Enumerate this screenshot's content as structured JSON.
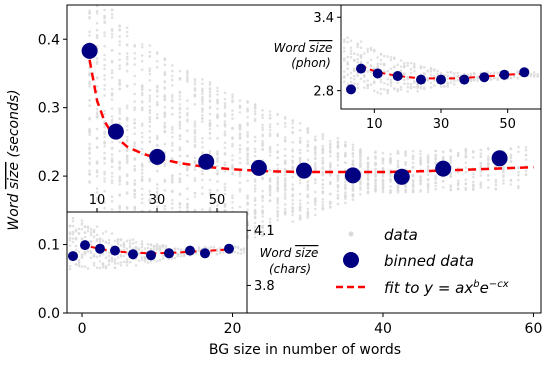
{
  "chart_data": [
    {
      "panel": "main",
      "type": "scatter",
      "xlabel": "BG size in number of words",
      "ylabel_parts": [
        "Word ",
        "size",
        " (seconds)"
      ],
      "xlim": [
        -2,
        61
      ],
      "ylim": [
        0,
        0.45
      ],
      "xticks": [
        0,
        20,
        40,
        60
      ],
      "xtick_labels": [
        "0",
        "20",
        "40",
        "60"
      ],
      "yticks": [
        0.0,
        0.1,
        0.2,
        0.3,
        0.4
      ],
      "ytick_labels": [
        "0.0",
        "0.1",
        "0.2",
        "0.3",
        "0.4"
      ],
      "series": [
        {
          "name": "binned data",
          "color": "#000080",
          "points": [
            [
              1,
              0.383
            ],
            [
              4.5,
              0.265
            ],
            [
              10,
              0.228
            ],
            [
              16.5,
              0.221
            ],
            [
              23.5,
              0.212
            ],
            [
              29.5,
              0.208
            ],
            [
              36,
              0.201
            ],
            [
              42.5,
              0.199
            ],
            [
              48,
              0.211
            ],
            [
              55.5,
              0.226
            ]
          ]
        },
        {
          "name": "fit to y=ax^b e^{-cx}",
          "color": "#ff0000",
          "curve": [
            [
              1,
              0.37
            ],
            [
              2,
              0.31
            ],
            [
              3,
              0.28
            ],
            [
              4,
              0.262
            ],
            [
              6,
              0.243
            ],
            [
              8,
              0.233
            ],
            [
              10,
              0.226
            ],
            [
              13,
              0.219
            ],
            [
              16,
              0.214
            ],
            [
              20,
              0.21
            ],
            [
              25,
              0.207
            ],
            [
              30,
              0.206
            ],
            [
              35,
              0.206
            ],
            [
              40,
              0.206
            ],
            [
              45,
              0.207
            ],
            [
              50,
              0.209
            ],
            [
              55,
              0.211
            ],
            [
              60,
              0.213
            ]
          ]
        }
      ],
      "legend": {
        "location": "lower-right",
        "entries": [
          {
            "label": "data",
            "marker": "gray-dot"
          },
          {
            "label": "binned data",
            "marker": "navy-circle"
          },
          {
            "label_parts": [
              "fit to ",
              "y",
              " = ",
              "ax",
              "b",
              "e",
              "−cx"
            ],
            "marker": "red-dashed"
          }
        ]
      },
      "background_scatter_color": "#d9d9d9"
    },
    {
      "panel": "inset_phon",
      "type": "scatter",
      "ylabel_parts": [
        "Word ",
        "size",
        "(phon)"
      ],
      "xlim": [
        0,
        60
      ],
      "ylim": [
        2.65,
        3.5
      ],
      "xticks": [
        10,
        30,
        50
      ],
      "xtick_labels": [
        "10",
        "30",
        "50"
      ],
      "yticks": [
        2.8,
        3.4
      ],
      "ytick_labels": [
        "2.8",
        "3.4"
      ],
      "series": [
        {
          "name": "binned data",
          "color": "#000080",
          "points": [
            [
              3,
              2.81
            ],
            [
              6,
              2.98
            ],
            [
              11,
              2.94
            ],
            [
              17,
              2.92
            ],
            [
              24,
              2.89
            ],
            [
              30,
              2.89
            ],
            [
              37,
              2.89
            ],
            [
              43,
              2.91
            ],
            [
              49,
              2.93
            ],
            [
              55,
              2.95
            ]
          ]
        },
        {
          "name": "fit",
          "color": "#ff0000",
          "curve": [
            [
              6,
              3.01
            ],
            [
              8,
              2.98
            ],
            [
              11,
              2.95
            ],
            [
              15,
              2.93
            ],
            [
              20,
              2.91
            ],
            [
              25,
              2.9
            ],
            [
              30,
              2.9
            ],
            [
              35,
              2.9
            ],
            [
              40,
              2.91
            ],
            [
              45,
              2.92
            ],
            [
              50,
              2.93
            ],
            [
              56,
              2.94
            ]
          ]
        }
      ]
    },
    {
      "panel": "inset_chars",
      "type": "scatter",
      "ylabel_parts": [
        "Word ",
        "size",
        "(chars)"
      ],
      "xlim": [
        0,
        60
      ],
      "ylim": [
        3.65,
        4.2
      ],
      "xticks": [
        10,
        30,
        50
      ],
      "xtick_labels": [
        "10",
        "30",
        "50"
      ],
      "yticks": [
        3.8,
        4.1
      ],
      "ytick_labels": [
        "3.8",
        "4.1"
      ],
      "series": [
        {
          "name": "binned data",
          "color": "#000080",
          "points": [
            [
              2,
              3.96
            ],
            [
              6,
              4.02
            ],
            [
              11,
              4.0
            ],
            [
              16,
              3.99
            ],
            [
              22,
              3.97
            ],
            [
              28,
              3.965
            ],
            [
              34,
              3.975
            ],
            [
              41,
              3.99
            ],
            [
              46,
              3.975
            ],
            [
              54,
              4.0
            ]
          ]
        },
        {
          "name": "fit",
          "color": "#ff0000",
          "curve": [
            [
              5,
              4.035
            ],
            [
              8,
              4.01
            ],
            [
              12,
              3.995
            ],
            [
              17,
              3.985
            ],
            [
              22,
              3.978
            ],
            [
              28,
              3.975
            ],
            [
              34,
              3.977
            ],
            [
              40,
              3.982
            ],
            [
              46,
              3.988
            ],
            [
              54,
              3.996
            ]
          ]
        }
      ]
    }
  ]
}
